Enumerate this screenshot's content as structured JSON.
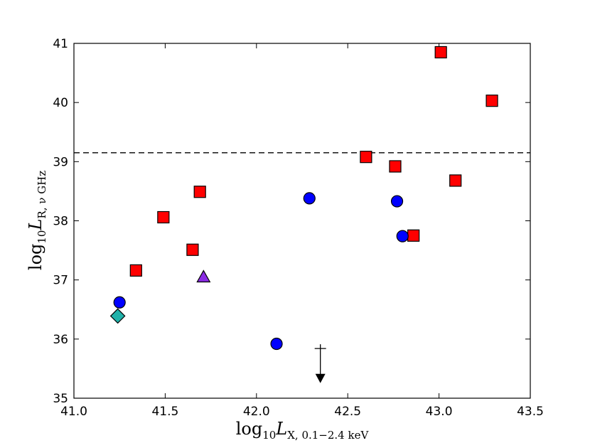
{
  "chart_data": {
    "type": "scatter",
    "title": "",
    "xlabel": {
      "prefix": "log",
      "prefix_sub": "10",
      "var": "L",
      "var_sub": "X, 0.1−2.4 keV"
    },
    "ylabel": {
      "prefix": "log",
      "prefix_sub": "10",
      "var": "L",
      "var_sub": "R, ν GHz"
    },
    "xlim": [
      41.0,
      43.5
    ],
    "ylim": [
      35,
      41
    ],
    "xticks": [
      41.0,
      41.5,
      42.0,
      42.5,
      43.0,
      43.5
    ],
    "xtick_labels": [
      "41.0",
      "41.5",
      "42.0",
      "42.5",
      "43.0",
      "43.5"
    ],
    "yticks": [
      35,
      36,
      37,
      38,
      39,
      40,
      41
    ],
    "ytick_labels": [
      "35",
      "36",
      "37",
      "38",
      "39",
      "40",
      "41"
    ],
    "grid": false,
    "hline": {
      "y": 39.15,
      "style": "dashed",
      "color": "#000000"
    },
    "series": [
      {
        "name": "squares",
        "marker": "square",
        "color": "#ff0000",
        "points": [
          {
            "x": 41.34,
            "y": 37.16
          },
          {
            "x": 41.49,
            "y": 38.06
          },
          {
            "x": 41.65,
            "y": 37.51
          },
          {
            "x": 41.69,
            "y": 38.49
          },
          {
            "x": 42.6,
            "y": 39.08
          },
          {
            "x": 42.76,
            "y": 38.92
          },
          {
            "x": 42.86,
            "y": 37.75
          },
          {
            "x": 43.01,
            "y": 40.85
          },
          {
            "x": 43.09,
            "y": 38.68
          },
          {
            "x": 43.29,
            "y": 40.03
          }
        ]
      },
      {
        "name": "circles",
        "marker": "circle",
        "color": "#0000ff",
        "points": [
          {
            "x": 41.25,
            "y": 36.62
          },
          {
            "x": 42.11,
            "y": 35.92
          },
          {
            "x": 42.29,
            "y": 38.38
          },
          {
            "x": 42.77,
            "y": 38.33
          },
          {
            "x": 42.8,
            "y": 37.74
          }
        ]
      },
      {
        "name": "triangle",
        "marker": "triangle",
        "color": "#8a2be2",
        "points": [
          {
            "x": 41.71,
            "y": 37.05
          }
        ]
      },
      {
        "name": "diamond",
        "marker": "diamond",
        "color": "#20b2aa",
        "points": [
          {
            "x": 41.24,
            "y": 36.39
          }
        ]
      }
    ],
    "upper_limits": [
      {
        "x": 42.35,
        "y": 35.84,
        "to": 35.28,
        "color": "#000000"
      }
    ]
  }
}
